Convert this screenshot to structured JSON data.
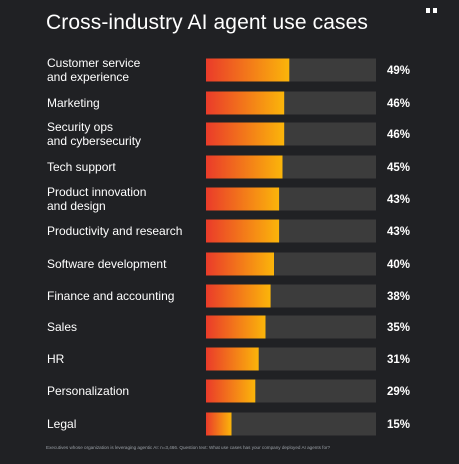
{
  "header": {
    "title": "Cross-industry AI agent use cases"
  },
  "footnote": "Executives whose organization is leveraging agentic AI: n=3,466. Question text: What use cases has your company deployed AI agents for?",
  "colors": {
    "background": "#202124",
    "track": "#3c3c3c",
    "gradient_start": "#ea3b2a",
    "gradient_end": "#fbb50a",
    "text": "#ffffff"
  },
  "chart_data": {
    "type": "bar",
    "orientation": "horizontal",
    "xlim": [
      0,
      100
    ],
    "categories": [
      [
        "Customer service",
        "and experience"
      ],
      [
        "Marketing"
      ],
      [
        "Security ops",
        "and cybersecurity"
      ],
      [
        "Tech support"
      ],
      [
        "Product innovation",
        "and design"
      ],
      [
        "Productivity and research"
      ],
      [
        "Software development"
      ],
      [
        "Finance and accounting"
      ],
      [
        "Sales"
      ],
      [
        "HR"
      ],
      [
        "Personalization"
      ],
      [
        "Legal"
      ]
    ],
    "values": [
      49,
      46,
      46,
      45,
      43,
      43,
      40,
      38,
      35,
      31,
      29,
      15
    ],
    "value_labels": [
      "49%",
      "46%",
      "46%",
      "45%",
      "43%",
      "43%",
      "40%",
      "38%",
      "35%",
      "31%",
      "29%",
      "15%"
    ]
  }
}
